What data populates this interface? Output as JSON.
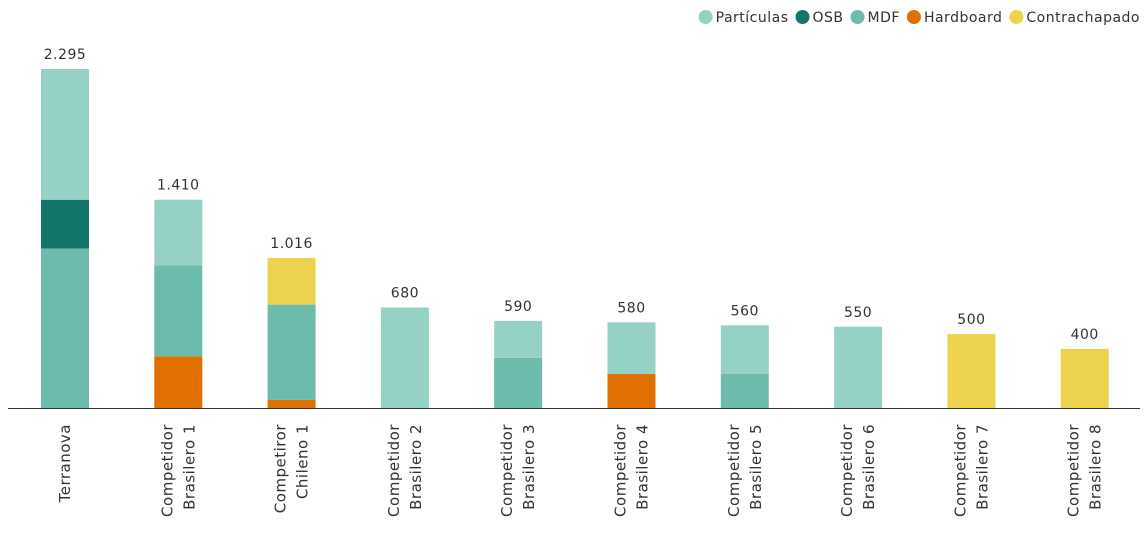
{
  "chart_data": {
    "type": "stacked_bar",
    "categories": [
      [
        "Terranova"
      ],
      [
        "Competidor",
        "Brasilero 1"
      ],
      [
        "Competiror",
        "Chileno 1"
      ],
      [
        "Competidor",
        "Brasilero 2"
      ],
      [
        "Competidor",
        "Brasilero 3"
      ],
      [
        "Competidor",
        "Brasilero 4"
      ],
      [
        "Competidor",
        "Brasilero 5"
      ],
      [
        "Competidor",
        "Brasilero 6"
      ],
      [
        "Competidor",
        "Brasilero 7"
      ],
      [
        "Competidor",
        "Brasilero 8"
      ]
    ],
    "series": [
      {
        "name": "Partículas",
        "color": "#96d1c5",
        "values": [
          885,
          445,
          null,
          680,
          250,
          350,
          330,
          550,
          null,
          null
        ]
      },
      {
        "name": "OSB",
        "color": "#14766a",
        "values": [
          330,
          null,
          null,
          null,
          null,
          null,
          null,
          null,
          null,
          null
        ]
      },
      {
        "name": "MDF",
        "color": "#6cbbac",
        "values": [
          1080,
          615,
          645,
          null,
          340,
          null,
          230,
          null,
          null,
          null
        ]
      },
      {
        "name": "Hardboard",
        "color": "#e07000",
        "values": [
          null,
          350,
          55,
          null,
          null,
          230,
          null,
          null,
          null,
          null
        ]
      },
      {
        "name": "Contrachapado",
        "color": "#edd24e",
        "values": [
          null,
          null,
          316,
          null,
          null,
          null,
          null,
          null,
          500,
          400
        ]
      }
    ],
    "totals": [
      2295,
      1410,
      1016,
      680,
      590,
      580,
      560,
      550,
      500,
      400
    ],
    "value_labels": [
      "2.295",
      "1.410",
      "1.016",
      "680",
      "590",
      "580",
      "560",
      "550",
      "500",
      "400"
    ],
    "ylim": [
      0,
      2300
    ],
    "legend": "top-right"
  }
}
